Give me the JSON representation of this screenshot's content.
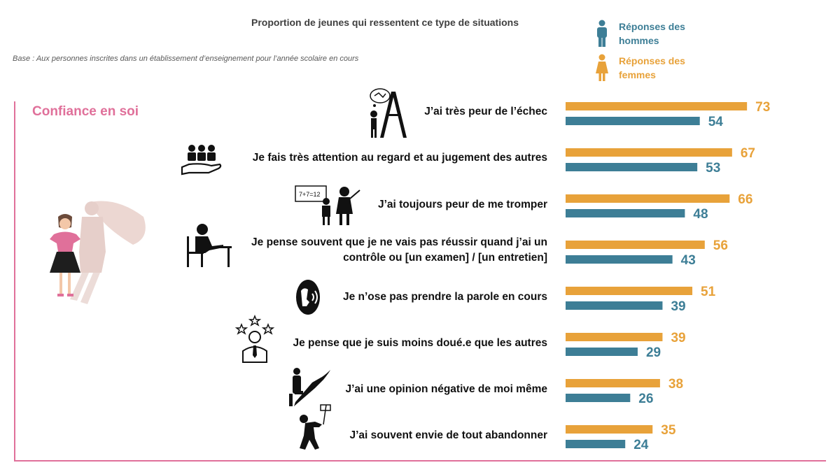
{
  "header": {
    "title": "Proportion de jeunes qui ressentent ce type de situations",
    "base_label": "Base :",
    "base_text": "Aux personnes inscrites dans un établissement d’enseignement pour l’année scolaire en cours"
  },
  "legend": {
    "men": {
      "label_line1": "Réponses des",
      "label_line2": "hommes",
      "color": "#3d7e96",
      "icon": "man-icon"
    },
    "women": {
      "label_line1": "Réponses des",
      "label_line2": "femmes",
      "color": "#e8a23a",
      "icon": "woman-icon"
    }
  },
  "section": {
    "title": "Confiance en soi"
  },
  "rows": [
    {
      "label": "J’ai très peur de l’échec",
      "icon": "failure-chalkboard-icon"
    },
    {
      "label": "Je fais très attention au regard et au jugement des autres",
      "icon": "audience-hand-icon"
    },
    {
      "label": "J’ai toujours peur de me tromper",
      "icon": "teacher-board-icon"
    },
    {
      "label_line1": "Je pense souvent que je ne vais pas réussir quand j’ai un",
      "label_line2": "contrôle ou [un examen] / [un entretien]",
      "icon": "student-desk-icon"
    },
    {
      "label": "Je n’ose pas prendre la parole en cours",
      "icon": "speaking-head-icon"
    },
    {
      "label": "Je pense que je suis moins doué.e que les autres",
      "icon": "stars-person-icon"
    },
    {
      "label": "J’ai une opinion négative de moi même",
      "icon": "shadow-hero-icon"
    },
    {
      "label": "J’ai souvent envie de tout abandonner",
      "icon": "give-up-flag-icon"
    }
  ],
  "chart_data": {
    "type": "bar",
    "orientation": "horizontal",
    "title": "Proportion de jeunes qui ressentent ce type de situations",
    "categories": [
      "J’ai très peur de l’échec",
      "Je fais très attention au regard et au jugement des autres",
      "J’ai toujours peur de me tromper",
      "Je pense souvent que je ne vais pas réussir quand j’ai un contrôle ou [un examen] / [un entretien]",
      "Je n’ose pas prendre la parole en cours",
      "Je pense que je suis moins doué.e que les autres",
      "J’ai une opinion négative de moi même",
      "J’ai souvent envie de tout abandonner"
    ],
    "series": [
      {
        "name": "Réponses des femmes",
        "color": "#e8a23a",
        "values": [
          73,
          67,
          66,
          56,
          51,
          39,
          38,
          35
        ]
      },
      {
        "name": "Réponses des hommes",
        "color": "#3d7e96",
        "values": [
          54,
          53,
          48,
          43,
          39,
          29,
          26,
          24
        ]
      }
    ],
    "data_labels": true,
    "axis_visible": false,
    "grid": false,
    "legend_placement": "top-right"
  }
}
